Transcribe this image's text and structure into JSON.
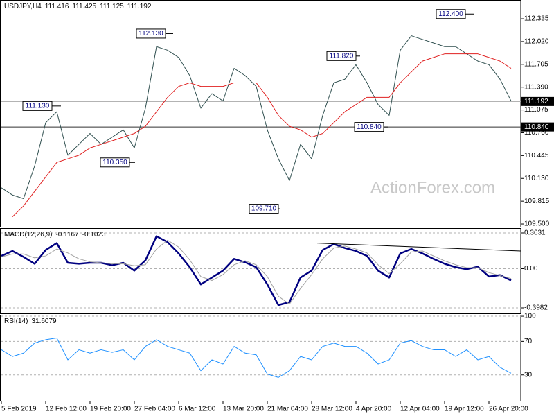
{
  "chart_data": [
    {
      "type": "line",
      "title": "USDJPY,H4",
      "readout": [
        111.416,
        111.425,
        111.125,
        111.192
      ],
      "watermark": "ActionForex.com",
      "ylim": [
        109.462,
        112.594
      ],
      "yticks": [
        112.335,
        {
          "value": 112.02,
          "label": "112.020"
        },
        111.705,
        {
          "value": 111.39,
          "label": "111.390"
        },
        111.075,
        {
          "value": 110.76,
          "label": "110.760"
        },
        110.445,
        {
          "value": 110.13,
          "label": "110.130"
        },
        109.815,
        {
          "value": 109.5,
          "label": "109.500"
        }
      ],
      "series": [
        {
          "color": "#2f4f4f",
          "values": [
            110.0,
            109.9,
            109.85,
            110.3,
            110.9,
            111.05,
            110.45,
            110.6,
            110.75,
            110.6,
            110.7,
            110.8,
            110.55,
            111.1,
            111.95,
            111.9,
            111.8,
            111.55,
            111.1,
            111.3,
            111.2,
            111.65,
            111.55,
            111.4,
            110.8,
            110.4,
            110.1,
            110.6,
            110.4,
            111.0,
            111.45,
            111.5,
            111.7,
            111.45,
            111.15,
            111.0,
            111.9,
            112.1,
            112.05,
            112.0,
            111.95,
            111.95,
            111.85,
            111.75,
            111.7,
            111.5,
            111.2
          ]
        },
        {
          "color": "#e02020",
          "values": [
            null,
            109.6,
            109.75,
            109.95,
            110.15,
            110.35,
            110.4,
            110.45,
            110.55,
            110.6,
            110.65,
            110.7,
            110.75,
            110.85,
            111.05,
            111.25,
            111.4,
            111.45,
            111.4,
            111.4,
            111.4,
            111.45,
            111.45,
            111.45,
            111.25,
            111.0,
            110.85,
            110.8,
            110.7,
            110.75,
            110.9,
            111.05,
            111.15,
            111.25,
            111.25,
            111.25,
            111.45,
            111.6,
            111.75,
            111.8,
            111.85,
            111.85,
            111.85,
            111.85,
            111.8,
            111.75,
            111.65
          ]
        }
      ],
      "hlines": [
        {
          "value": 111.192,
          "color": "#a8a8a8"
        },
        {
          "value": 110.84,
          "label": "110.840",
          "color": "#303030"
        }
      ],
      "annotations": [
        {
          "value": 111.13,
          "label": "111.130"
        },
        {
          "value": 112.13,
          "label": "112.130"
        },
        {
          "value": 110.35,
          "label": "110.350"
        },
        {
          "value": 109.71,
          "label": "109.710"
        },
        {
          "value": 111.82,
          "label": "111.820"
        },
        {
          "value": 110.84,
          "label": "110.840"
        },
        {
          "value": 112.4,
          "label": "112.400"
        }
      ]
    },
    {
      "type": "line",
      "title": "MACD(12,26,9)",
      "readout": [
        -0.1167,
        -0.1023
      ],
      "ylim": [
        -0.4546,
        0.4124
      ],
      "yticks": [
        0.3631,
        {
          "value": 0,
          "label": "0.00"
        },
        -0.3982
      ],
      "grid": "dashed",
      "series": [
        {
          "color": "#000080",
          "width": 2.5,
          "values": [
            0.13,
            0.18,
            0.12,
            0.05,
            0.19,
            0.26,
            0.06,
            0.05,
            0.06,
            0.06,
            0.035,
            0.06,
            -0.02,
            0.085,
            0.33,
            0.27,
            0.155,
            0.015,
            -0.16,
            -0.09,
            -0.02,
            0.1,
            0.065,
            0.015,
            -0.16,
            -0.37,
            -0.34,
            -0.09,
            -0.02,
            0.19,
            0.25,
            0.21,
            0.18,
            0.13,
            -0.02,
            -0.09,
            0.155,
            0.2,
            0.155,
            0.1,
            0.05,
            0.015,
            -0.005,
            0.02,
            -0.08,
            -0.065,
            -0.12
          ]
        },
        {
          "color": "#a0a0a0",
          "width": 1,
          "values": [
            0.12,
            0.15,
            0.15,
            0.11,
            0.13,
            0.2,
            0.16,
            0.1,
            0.07,
            0.06,
            0.05,
            0.05,
            0.03,
            0.04,
            0.2,
            0.29,
            0.22,
            0.09,
            -0.08,
            -0.12,
            -0.06,
            0.04,
            0.08,
            0.04,
            -0.08,
            -0.28,
            -0.36,
            -0.2,
            -0.06,
            0.1,
            0.21,
            0.23,
            0.2,
            0.16,
            0.04,
            -0.05,
            0.05,
            0.17,
            0.18,
            0.13,
            0.08,
            0.04,
            0.01,
            0.01,
            -0.04,
            -0.07,
            -0.1
          ]
        }
      ],
      "trendline": [
        0.26,
        0.18
      ]
    },
    {
      "type": "line",
      "title": "RSI(14)",
      "readout": [
        31.6079
      ],
      "ylim": [
        -0.8,
        101.7
      ],
      "yticks": [
        100,
        70,
        30
      ],
      "grid": "dashed",
      "series": [
        {
          "color": "#1e90ff",
          "width": 1,
          "values": [
            60,
            52,
            56,
            68,
            72,
            74,
            48,
            60,
            56,
            60,
            57,
            60,
            48,
            64,
            72,
            64,
            60,
            56,
            35,
            48,
            43,
            64,
            56,
            54,
            31,
            27,
            35,
            52,
            48,
            64,
            68,
            64,
            64,
            56,
            43,
            48,
            68,
            71,
            64,
            60,
            60,
            52,
            60,
            48,
            52,
            39,
            32
          ]
        }
      ],
      "categories": [
        "5 Feb 2019",
        null,
        null,
        null,
        "12 Feb 12:00",
        null,
        null,
        null,
        "19 Feb 20:00",
        null,
        null,
        null,
        "27 Feb 04:00",
        null,
        null,
        null,
        "6 Mar 12:00",
        null,
        null,
        null,
        "13 Mar 20:00",
        null,
        null,
        null,
        "21 Mar 04:00",
        null,
        null,
        null,
        "28 Mar 12:00",
        null,
        null,
        null,
        "4 Apr 20:00",
        null,
        null,
        null,
        "12 Apr 04:00",
        null,
        null,
        null,
        "19 Apr 12:00",
        null,
        null,
        null,
        "26 Apr 20:00",
        null,
        null
      ]
    }
  ]
}
